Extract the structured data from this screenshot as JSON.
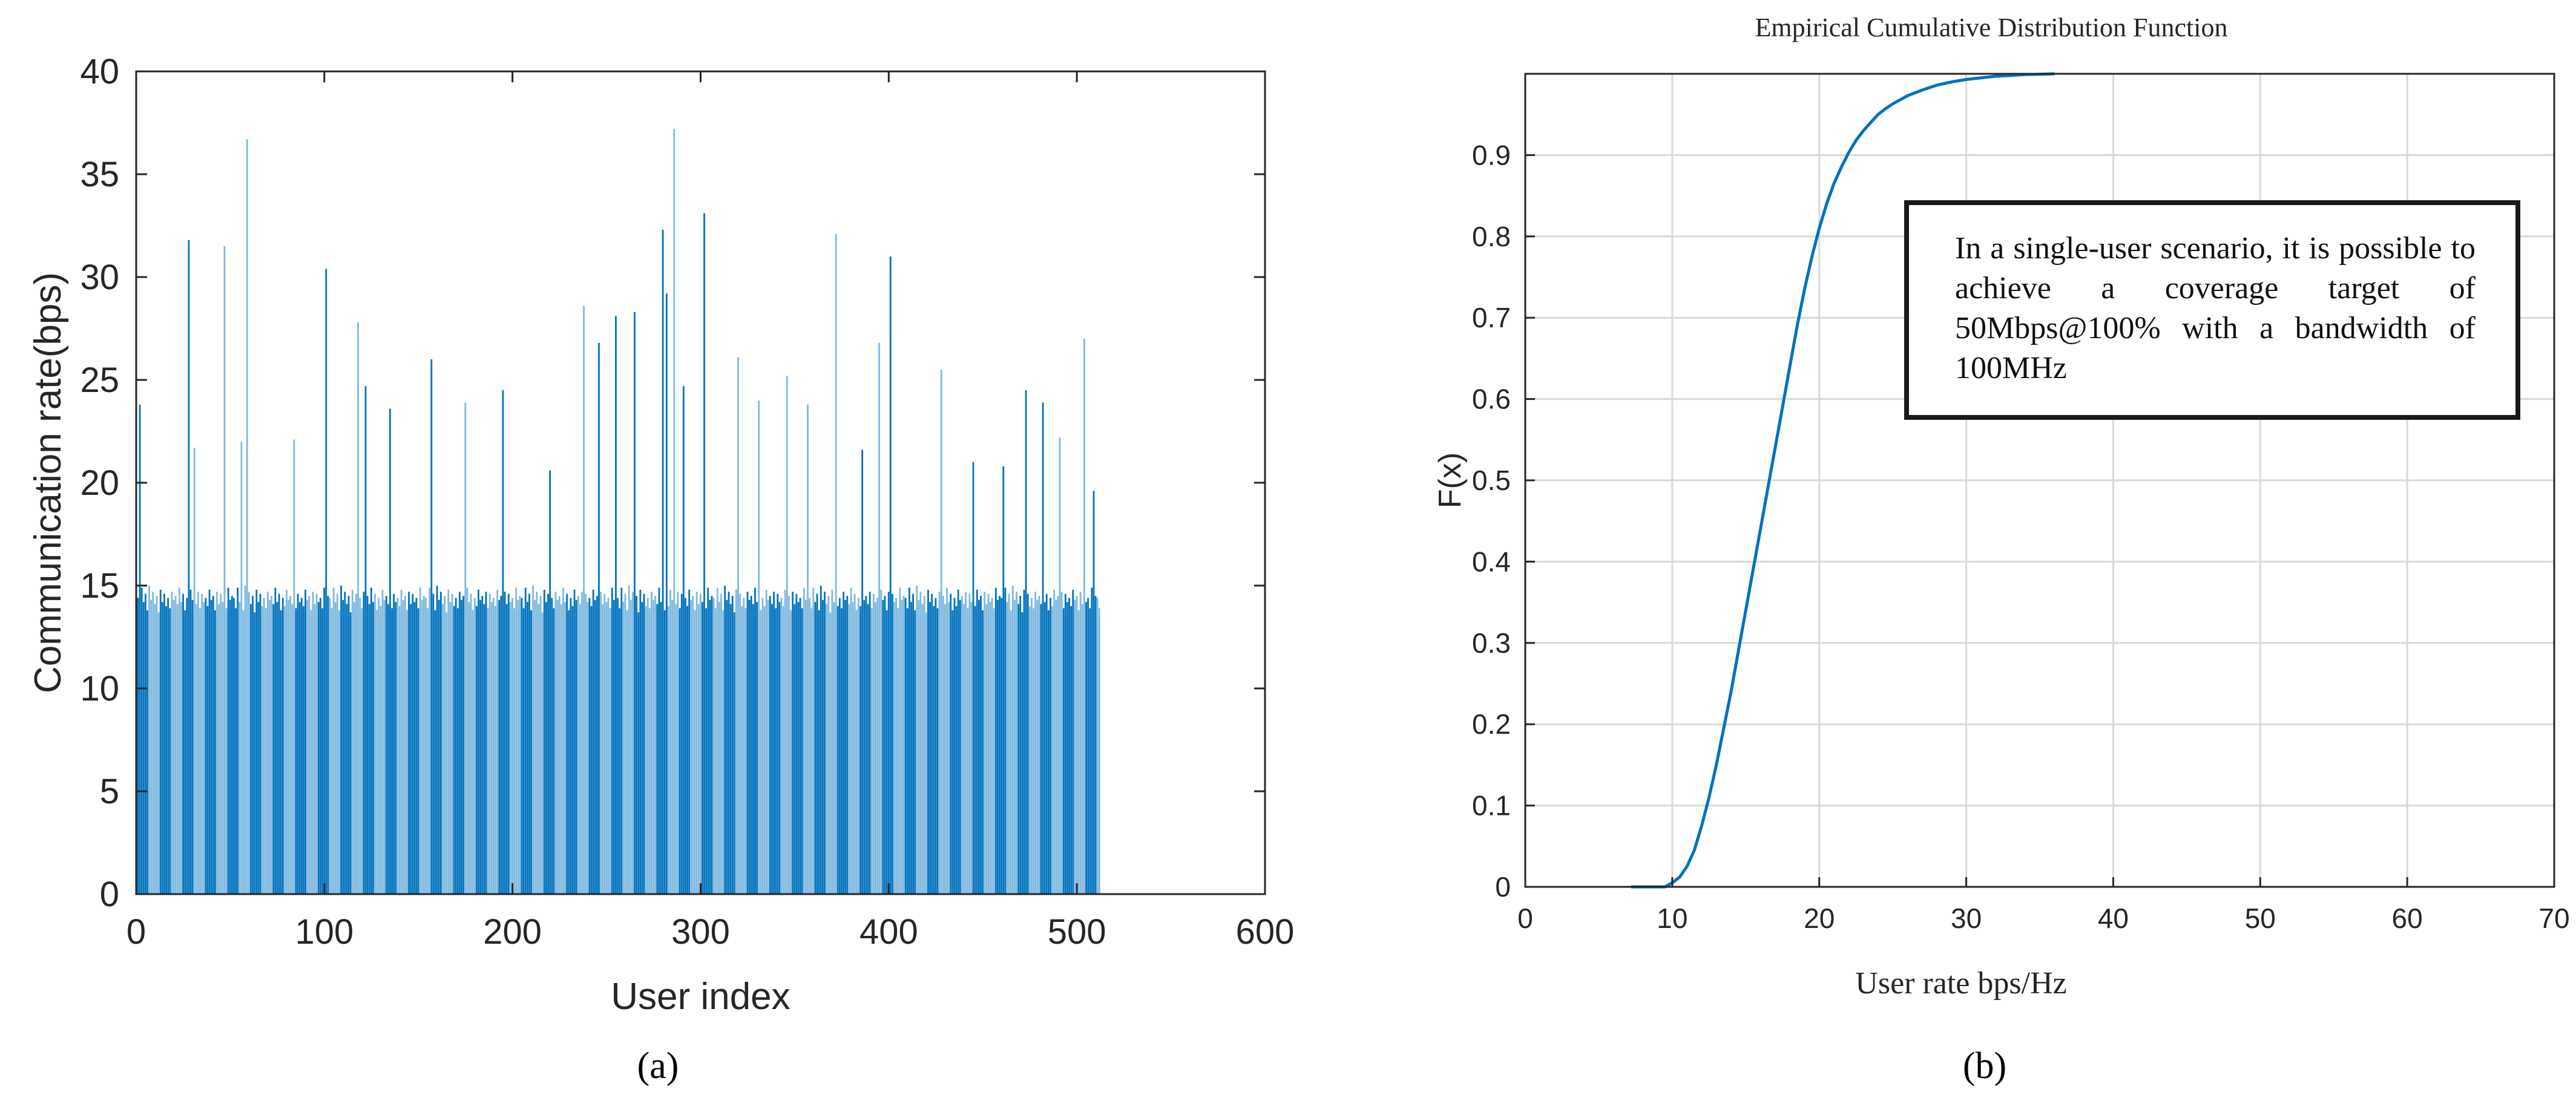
{
  "colors": {
    "bar_dark": "#0072BD",
    "bar_light": "#7FB9DF",
    "cdf_line": "#0072BD",
    "grid": "#d9d9d9",
    "axis": "#262626"
  },
  "caption_a": "(a)",
  "caption_b": "(b)",
  "note_text": "In a single-user scenario, it is possible to achieve a coverage target of 50Mbps@100% with a bandwidth of 100MHz",
  "chart_data": [
    {
      "type": "bar",
      "title": "",
      "xlabel": "User index",
      "ylabel": "Communication rate(bps)",
      "xlim": [
        0,
        600
      ],
      "ylim": [
        0,
        40
      ],
      "xticks": [
        0,
        100,
        200,
        300,
        400,
        500,
        600
      ],
      "yticks": [
        0,
        5,
        10,
        15,
        20,
        25,
        30,
        35,
        40
      ],
      "grid": false,
      "n_users": 512,
      "base_values": [
        14.4,
        13.9,
        14.9,
        14.2,
        14.6,
        13.8,
        15.0,
        14.3,
        14.7,
        14.1,
        14.5,
        13.7,
        14.8,
        14.2,
        14.6,
        14.0,
        14.4,
        13.9,
        14.7,
        14.3,
        14.5,
        14.1,
        14.9,
        14.2,
        14.6,
        13.8,
        14.4,
        14.0,
        14.8,
        14.3,
        14.5,
        14.1,
        14.7,
        13.9,
        14.6,
        14.2,
        14.4,
        14.0,
        14.8,
        14.3,
        14.5,
        13.8,
        14.7,
        14.1,
        14.6,
        14.2,
        14.4,
        13.9,
        14.9,
        14.3,
        14.5
      ],
      "peaks": [
        {
          "index": 2,
          "value": 23.8
        },
        {
          "index": 28,
          "value": 31.8
        },
        {
          "index": 31,
          "value": 21.7
        },
        {
          "index": 47,
          "value": 31.5
        },
        {
          "index": 56,
          "value": 22.0
        },
        {
          "index": 59,
          "value": 36.7
        },
        {
          "index": 84,
          "value": 22.1
        },
        {
          "index": 101,
          "value": 30.4
        },
        {
          "index": 118,
          "value": 27.8
        },
        {
          "index": 122,
          "value": 24.7
        },
        {
          "index": 135,
          "value": 23.6
        },
        {
          "index": 157,
          "value": 26.0
        },
        {
          "index": 175,
          "value": 23.9
        },
        {
          "index": 195,
          "value": 24.5
        },
        {
          "index": 220,
          "value": 20.6
        },
        {
          "index": 238,
          "value": 28.6
        },
        {
          "index": 246,
          "value": 26.8
        },
        {
          "index": 255,
          "value": 28.1
        },
        {
          "index": 265,
          "value": 28.3
        },
        {
          "index": 280,
          "value": 32.3
        },
        {
          "index": 282,
          "value": 29.2
        },
        {
          "index": 286,
          "value": 37.2
        },
        {
          "index": 291,
          "value": 24.7
        },
        {
          "index": 302,
          "value": 33.1
        },
        {
          "index": 320,
          "value": 26.1
        },
        {
          "index": 331,
          "value": 24.0
        },
        {
          "index": 346,
          "value": 25.2
        },
        {
          "index": 357,
          "value": 23.8
        },
        {
          "index": 372,
          "value": 32.1
        },
        {
          "index": 386,
          "value": 21.6
        },
        {
          "index": 395,
          "value": 26.8
        },
        {
          "index": 401,
          "value": 31.0
        },
        {
          "index": 428,
          "value": 25.5
        },
        {
          "index": 445,
          "value": 21.0
        },
        {
          "index": 461,
          "value": 20.8
        },
        {
          "index": 473,
          "value": 24.5
        },
        {
          "index": 482,
          "value": 23.9
        },
        {
          "index": 491,
          "value": 22.2
        },
        {
          "index": 504,
          "value": 27.0
        },
        {
          "index": 509,
          "value": 19.6
        }
      ]
    },
    {
      "type": "line",
      "title": "Empirical Cumulative Distribution Function",
      "xlabel": "User rate bps/Hz",
      "ylabel": "F(x)",
      "xlim": [
        0,
        70
      ],
      "ylim": [
        0,
        1
      ],
      "xticks": [
        0,
        10,
        20,
        30,
        40,
        50,
        60,
        70
      ],
      "yticks": [
        0,
        0.1,
        0.2,
        0.3,
        0.4,
        0.5,
        0.6,
        0.7,
        0.8,
        0.9
      ],
      "grid": true,
      "series": [
        {
          "x": [
            7.2,
            9.5,
            10.0,
            10.5,
            11.0,
            11.5,
            12.0,
            12.5,
            13.0,
            13.5,
            14.0,
            14.5,
            15.0,
            15.5,
            16.0,
            16.5,
            17.0,
            17.5,
            18.0,
            18.5,
            19.0,
            19.5,
            20.0,
            20.5,
            21.0,
            21.5,
            22.0,
            22.5,
            23.0,
            23.5,
            24.0,
            24.5,
            25.0,
            26.0,
            27.0,
            28.0,
            29.0,
            30.0,
            31.0,
            32.0,
            33.0,
            34.0,
            35.0,
            36.0
          ],
          "y": [
            0.0,
            0.0,
            0.005,
            0.012,
            0.025,
            0.045,
            0.075,
            0.11,
            0.15,
            0.195,
            0.24,
            0.29,
            0.34,
            0.39,
            0.44,
            0.49,
            0.54,
            0.59,
            0.64,
            0.69,
            0.735,
            0.775,
            0.81,
            0.84,
            0.865,
            0.885,
            0.903,
            0.918,
            0.93,
            0.94,
            0.95,
            0.957,
            0.963,
            0.973,
            0.98,
            0.986,
            0.99,
            0.993,
            0.995,
            0.997,
            0.998,
            0.999,
            0.9995,
            1.0
          ]
        }
      ]
    }
  ]
}
